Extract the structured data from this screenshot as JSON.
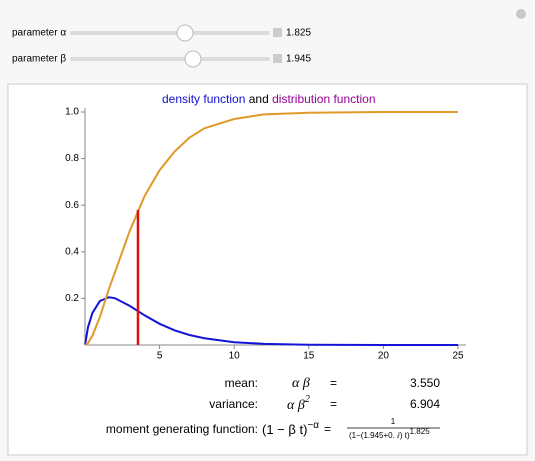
{
  "controls": [
    {
      "label": "parameter α",
      "value": 1.825
    },
    {
      "label": "parameter β",
      "value": 1.945
    }
  ],
  "chart_data": {
    "type": "line",
    "title_parts": [
      {
        "text": "density function",
        "color": "#1010d0"
      },
      {
        "text": "and",
        "color": "#000000"
      },
      {
        "text": "distribution function",
        "color": "#990099"
      }
    ],
    "x": [
      0,
      0.2,
      0.5,
      1,
      1.6,
      2,
      3,
      4,
      5,
      6,
      7,
      8,
      10,
      12,
      15,
      20,
      25
    ],
    "series": [
      {
        "color": "#1414d8",
        "values": [
          0,
          0.076,
          0.138,
          0.189,
          0.205,
          0.201,
          0.168,
          0.127,
          0.091,
          0.063,
          0.043,
          0.029,
          0.012,
          0.005,
          0.001,
          0,
          0
        ]
      },
      {
        "color": "#e09a2a",
        "values": [
          0,
          0.008,
          0.04,
          0.12,
          0.24,
          0.31,
          0.49,
          0.64,
          0.75,
          0.83,
          0.89,
          0.93,
          0.97,
          0.99,
          0.997,
          1,
          1
        ]
      }
    ],
    "marker": {
      "x": 3.55,
      "y": 0.58,
      "color": "#e01010"
    },
    "xlim": [
      0,
      25
    ],
    "ylim": [
      0,
      1
    ],
    "xticks": [
      5,
      10,
      15,
      20,
      25
    ],
    "yticks": [
      0.2,
      0.4,
      0.6,
      0.8,
      {
        "value": 1,
        "label": "1.0"
      }
    ]
  },
  "stats": [
    {
      "label": "mean:",
      "formula": "α β",
      "sign": "=",
      "value": "3.550"
    },
    {
      "label": "variance:",
      "formula": "α β",
      "formula_sup": "2",
      "sign": "=",
      "value": "6.904"
    }
  ],
  "mgf": {
    "label": "moment generating function:",
    "formula": "(1 − β t)",
    "formula_sup": "−α",
    "sign": "=",
    "numerator": "1",
    "denominator": "(1−(1.945+0. ⅈ) t)",
    "denominator_sup": "1.825"
  }
}
